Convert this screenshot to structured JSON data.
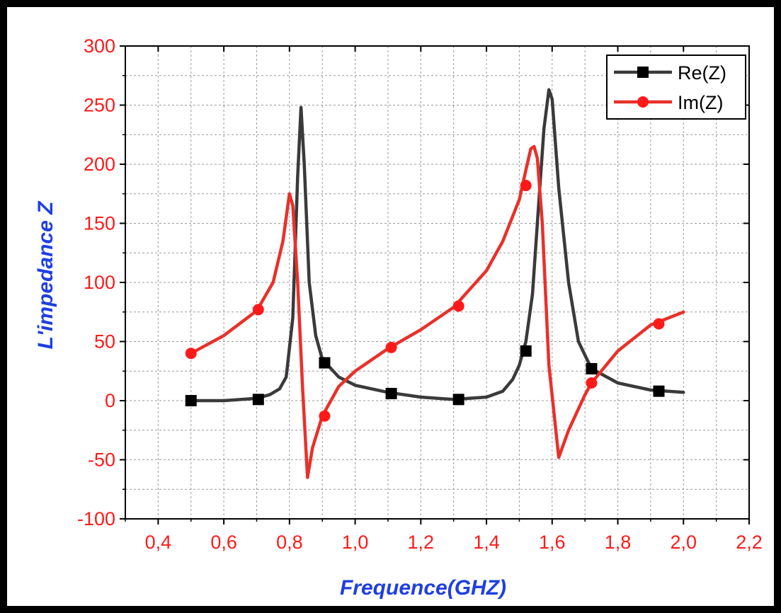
{
  "chart_data": {
    "type": "line",
    "title": "",
    "xlabel": "Frequence(GHZ)",
    "ylabel": "L'impedance Z",
    "xlim": [
      0.3,
      2.2
    ],
    "ylim": [
      -100,
      300
    ],
    "x_ticks": [
      "0,4",
      "0,6",
      "0,8",
      "1,0",
      "1,2",
      "1,4",
      "1,6",
      "1,8",
      "2,0",
      "2,2"
    ],
    "x_tick_values": [
      0.4,
      0.6,
      0.8,
      1.0,
      1.2,
      1.4,
      1.6,
      1.8,
      2.0,
      2.2
    ],
    "y_ticks": [
      "300",
      "250",
      "200",
      "150",
      "100",
      "50",
      "0",
      "-50",
      "-100"
    ],
    "y_tick_values": [
      300,
      250,
      200,
      150,
      100,
      50,
      0,
      -50,
      -100
    ],
    "grid": true,
    "legend_position": "top-right",
    "series": [
      {
        "name": "Re(Z)",
        "color": "#3a3a3a",
        "marker": "square",
        "x": [
          0.5,
          0.6,
          0.7,
          0.74,
          0.77,
          0.79,
          0.81,
          0.825,
          0.835,
          0.845,
          0.86,
          0.88,
          0.9,
          0.95,
          1.0,
          1.1,
          1.2,
          1.3,
          1.4,
          1.45,
          1.48,
          1.5,
          1.52,
          1.54,
          1.56,
          1.575,
          1.59,
          1.6,
          1.62,
          1.65,
          1.68,
          1.72,
          1.8,
          1.9,
          2.0
        ],
        "y": [
          0,
          0,
          2,
          5,
          10,
          20,
          70,
          190,
          248,
          200,
          100,
          55,
          35,
          20,
          13,
          7,
          3,
          1,
          3,
          8,
          18,
          30,
          50,
          90,
          170,
          230,
          263,
          255,
          180,
          100,
          50,
          27,
          15,
          9,
          7
        ]
      },
      {
        "name": "Im(Z)",
        "color": "#e8312a",
        "marker": "circle",
        "x": [
          0.5,
          0.6,
          0.7,
          0.75,
          0.78,
          0.8,
          0.81,
          0.825,
          0.84,
          0.855,
          0.87,
          0.9,
          0.95,
          1.0,
          1.1,
          1.2,
          1.3,
          1.4,
          1.45,
          1.5,
          1.52,
          1.535,
          1.545,
          1.555,
          1.57,
          1.59,
          1.62,
          1.65,
          1.7,
          1.72,
          1.8,
          1.9,
          2.0
        ],
        "y": [
          40,
          55,
          76,
          100,
          135,
          175,
          165,
          100,
          10,
          -65,
          -40,
          -13,
          12,
          25,
          44,
          60,
          79,
          110,
          135,
          170,
          195,
          213,
          215,
          205,
          150,
          30,
          -48,
          -25,
          5,
          15,
          42,
          64,
          75
        ]
      }
    ],
    "marker_points": {
      "Re(Z)": {
        "x": [
          0.5,
          0.705,
          0.907,
          1.11,
          1.315,
          1.52,
          1.72,
          1.925
        ],
        "y": [
          0,
          1,
          32,
          6,
          1,
          42,
          27,
          8
        ]
      },
      "Im(Z)": {
        "x": [
          0.5,
          0.705,
          0.907,
          1.11,
          1.315,
          1.52,
          1.72,
          1.925
        ],
        "y": [
          40,
          77,
          -13,
          45,
          80,
          182,
          15,
          65
        ]
      }
    }
  }
}
